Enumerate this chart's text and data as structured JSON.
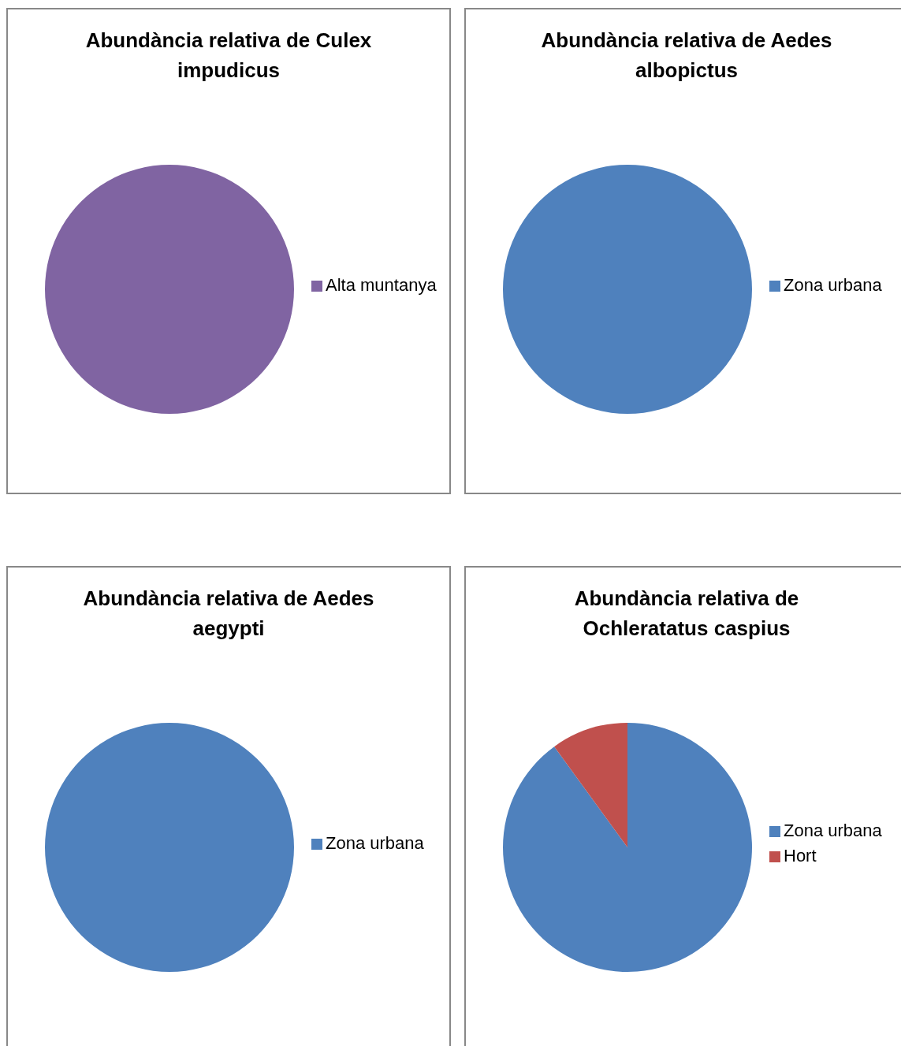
{
  "chart_data": [
    {
      "type": "pie",
      "title": "Abundància relativa de Culex impudicus",
      "categories": [
        "Alta muntanya"
      ],
      "values": [
        100
      ],
      "colors": [
        "#8064a2"
      ],
      "legend": "right"
    },
    {
      "type": "pie",
      "title": "Abundància relativa de Aedes albopictus",
      "categories": [
        "Zona urbana"
      ],
      "values": [
        100
      ],
      "colors": [
        "#4f81bd"
      ],
      "legend": "right"
    },
    {
      "type": "pie",
      "title": "Abundància relativa de Aedes aegypti",
      "categories": [
        "Zona urbana"
      ],
      "values": [
        100
      ],
      "colors": [
        "#4f81bd"
      ],
      "legend": "right"
    },
    {
      "type": "pie",
      "title": "Abundància relativa de Ochleratatus caspius",
      "categories": [
        "Zona urbana",
        "Hort"
      ],
      "values": [
        90,
        10
      ],
      "colors": [
        "#4f81bd",
        "#c0504d"
      ],
      "legend": "right"
    }
  ]
}
